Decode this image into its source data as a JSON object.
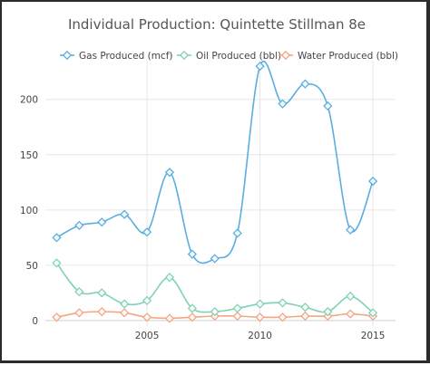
{
  "chart_data": {
    "type": "line",
    "title": "Individual Production: Quintette Stillman 8e",
    "xlabel": "",
    "ylabel": "",
    "xlim": [
      2000.5,
      2016
    ],
    "ylim": [
      -5,
      235
    ],
    "x_ticks": [
      2005,
      2010,
      2015
    ],
    "y_ticks": [
      0,
      50,
      100,
      150,
      200
    ],
    "grid": true,
    "legend_position": "top",
    "x": [
      2001,
      2002,
      2003,
      2004,
      2005,
      2006,
      2007,
      2008,
      2009,
      2010,
      2011,
      2012,
      2013,
      2014,
      2015
    ],
    "series": [
      {
        "name": "Gas Produced (mcf)",
        "color": "#5aaee0",
        "values": [
          75,
          86,
          89,
          96,
          80,
          134,
          60,
          56,
          79,
          230,
          196,
          214,
          194,
          82,
          126
        ]
      },
      {
        "name": "Oil Produced (bbl)",
        "color": "#7fd3b4",
        "values": [
          52,
          26,
          25,
          15,
          18,
          39,
          11,
          8,
          11,
          15,
          16,
          12,
          8,
          22,
          7
        ]
      },
      {
        "name": "Water Produced (bbl)",
        "color": "#f4a582",
        "values": [
          3,
          7,
          8,
          7,
          3,
          2,
          3,
          4,
          4,
          3,
          3,
          4,
          4,
          6,
          4
        ]
      }
    ]
  }
}
